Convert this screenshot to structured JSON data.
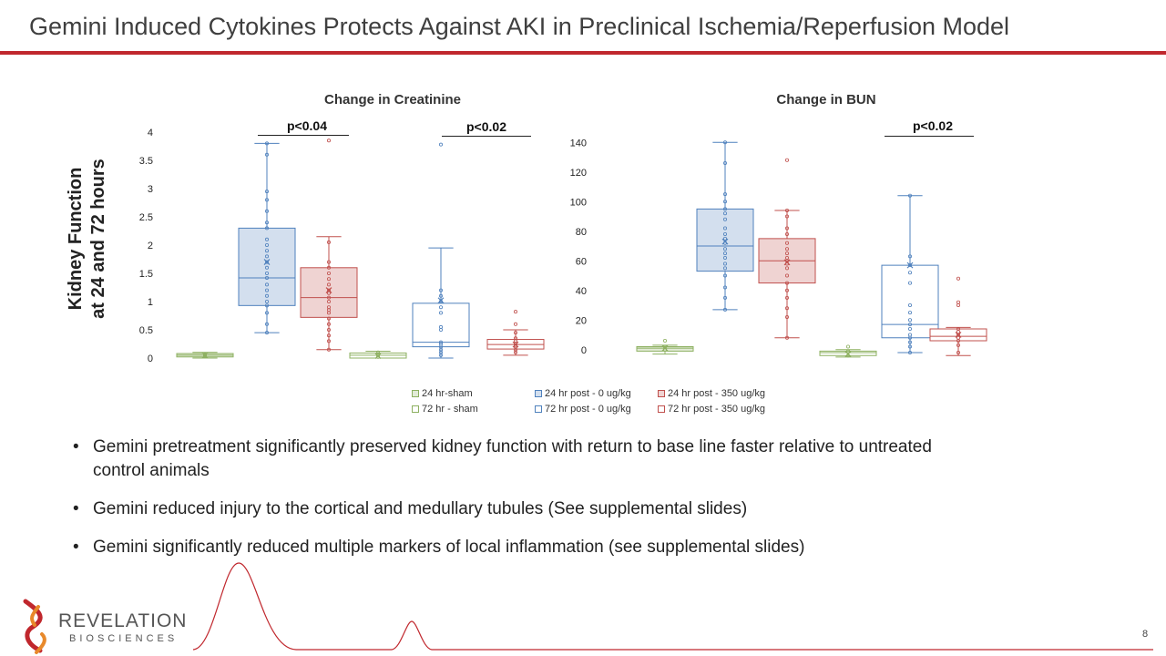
{
  "slide": {
    "title": "Gemini Induced Cytokines Protects Against AKI in Preclinical Ischemia/Reperfusion Model",
    "page_number": "8",
    "y_axis_label_line1": "Kidney Function",
    "y_axis_label_line2": "at 24 and 72 hours",
    "bullets": [
      "Gemini pretreatment significantly preserved kidney function with return to base line faster relative to untreated control animals",
      "Gemini reduced injury to the cortical and medullary tubules (See supplemental slides)",
      "Gemini significantly reduced multiple markers of local inflammation (see supplemental slides)"
    ],
    "logo": {
      "name": "REVELATION",
      "subtitle": "BIOSCIENCES"
    },
    "colors": {
      "accent": "#c0272d",
      "green": "#8db060",
      "blue": "#4f81bd",
      "red": "#c0504d"
    }
  },
  "legend": [
    {
      "label": "24 hr-sham",
      "color": "#8db060",
      "filled": true
    },
    {
      "label": "24 hr post - 0 ug/kg",
      "color": "#4f81bd",
      "filled": true
    },
    {
      "label": "24 hr post - 350 ug/kg",
      "color": "#c0504d",
      "filled": true
    },
    {
      "label": "72 hr - sham",
      "color": "#8db060",
      "filled": false
    },
    {
      "label": "72 hr post - 0 ug/kg",
      "color": "#4f81bd",
      "filled": false
    },
    {
      "label": "72 hr post - 350 ug/kg",
      "color": "#c0504d",
      "filled": false
    }
  ],
  "chart_data": [
    {
      "type": "box",
      "title": "Change in Creatinine",
      "ylim": [
        0,
        4
      ],
      "yticks": [
        0,
        0.5,
        1,
        1.5,
        2,
        2.5,
        3,
        3.5,
        4
      ],
      "ytick_labels": [
        "0",
        "0.5",
        "1",
        "1.5",
        "2",
        "2.5",
        "3",
        "3.5",
        "4"
      ],
      "significance": [
        {
          "label": "p<0.04",
          "groups": [
            "24 hr post - 0 ug/kg",
            "24 hr post - 350 ug/kg"
          ]
        },
        {
          "label": "p<0.02",
          "groups": [
            "72 hr post - 0 ug/kg",
            "72 hr post - 350 ug/kg"
          ]
        }
      ],
      "series": [
        {
          "name": "24 hr-sham",
          "timepoint": "24 hr",
          "color": "#8db060",
          "filled": true,
          "min": 0.0,
          "q1": 0.02,
          "median": 0.05,
          "q3": 0.08,
          "max": 0.1,
          "mean": 0.05,
          "points": [
            0.03,
            0.05,
            0.07
          ]
        },
        {
          "name": "24 hr post - 0 ug/kg",
          "timepoint": "24 hr",
          "color": "#4f81bd",
          "filled": true,
          "min": 0.45,
          "q1": 0.93,
          "median": 1.42,
          "q3": 2.3,
          "max": 3.8,
          "mean": 1.7,
          "points": [
            0.45,
            0.6,
            0.8,
            0.93,
            1.0,
            1.1,
            1.2,
            1.3,
            1.42,
            1.5,
            1.6,
            1.7,
            1.8,
            1.9,
            2.0,
            2.1,
            2.3,
            2.4,
            2.6,
            2.8,
            2.95,
            3.6,
            3.8
          ]
        },
        {
          "name": "24 hr post - 350 ug/kg",
          "timepoint": "24 hr",
          "color": "#c0504d",
          "filled": true,
          "min": 0.15,
          "q1": 0.72,
          "median": 1.07,
          "q3": 1.6,
          "max": 2.15,
          "mean": 1.2,
          "points": [
            0.15,
            0.3,
            0.4,
            0.5,
            0.6,
            0.7,
            0.8,
            0.85,
            0.9,
            1.0,
            1.07,
            1.15,
            1.2,
            1.3,
            1.4,
            1.5,
            1.6,
            1.7,
            2.05,
            3.85
          ]
        },
        {
          "name": "72 hr - sham",
          "timepoint": "72 hr",
          "color": "#8db060",
          "filled": false,
          "min": 0.0,
          "q1": 0.0,
          "median": 0.05,
          "q3": 0.09,
          "max": 0.12,
          "mean": 0.04,
          "points": [
            0.02,
            0.05,
            0.1
          ]
        },
        {
          "name": "72 hr post - 0 ug/kg",
          "timepoint": "72 hr",
          "color": "#4f81bd",
          "filled": false,
          "min": 0.0,
          "q1": 0.2,
          "median": 0.28,
          "q3": 0.97,
          "max": 1.95,
          "mean": 1.02,
          "points": [
            0.05,
            0.1,
            0.15,
            0.2,
            0.25,
            0.28,
            0.5,
            0.55,
            0.8,
            0.9,
            1.0,
            1.1,
            1.2,
            3.78
          ]
        },
        {
          "name": "72 hr post - 350 ug/kg",
          "timepoint": "72 hr",
          "color": "#c0504d",
          "filled": false,
          "min": 0.05,
          "q1": 0.16,
          "median": 0.24,
          "q3": 0.33,
          "max": 0.5,
          "mean": 0.24,
          "points": [
            0.1,
            0.15,
            0.2,
            0.22,
            0.26,
            0.3,
            0.35,
            0.45,
            0.6,
            0.82
          ]
        }
      ]
    },
    {
      "type": "box",
      "title": "Change in BUN",
      "ylim": [
        -10,
        150
      ],
      "yticks": [
        0,
        20,
        40,
        60,
        80,
        100,
        120,
        140
      ],
      "ytick_labels": [
        "0",
        "20",
        "40",
        "60",
        "80",
        "100",
        "120",
        "140"
      ],
      "significance": [
        {
          "label": "p<0.02",
          "groups": [
            "72 hr post - 0 ug/kg",
            "72 hr post - 350 ug/kg"
          ]
        }
      ],
      "series": [
        {
          "name": "24 hr-sham",
          "timepoint": "24 hr",
          "color": "#8db060",
          "filled": true,
          "min": -3,
          "q1": -1,
          "median": 1,
          "q3": 2,
          "max": 3,
          "mean": 1,
          "points": [
            0,
            2,
            6
          ]
        },
        {
          "name": "24 hr post - 0 ug/kg",
          "timepoint": "24 hr",
          "color": "#4f81bd",
          "filled": true,
          "min": 27,
          "q1": 53,
          "median": 70,
          "q3": 95,
          "max": 140,
          "mean": 73,
          "points": [
            27,
            35,
            42,
            50,
            55,
            58,
            62,
            65,
            68,
            72,
            75,
            78,
            82,
            88,
            92,
            95,
            100,
            105,
            126,
            140
          ]
        },
        {
          "name": "24 hr post - 350 ug/kg",
          "timepoint": "24 hr",
          "color": "#c0504d",
          "filled": true,
          "min": 8,
          "q1": 45,
          "median": 60,
          "q3": 75,
          "max": 94,
          "mean": 59,
          "points": [
            8,
            22,
            28,
            35,
            40,
            45,
            50,
            55,
            58,
            60,
            62,
            65,
            68,
            72,
            78,
            82,
            90,
            94,
            128
          ]
        },
        {
          "name": "72 hr - sham",
          "timepoint": "72 hr",
          "color": "#8db060",
          "filled": false,
          "min": -5,
          "q1": -4,
          "median": -2,
          "q3": -1,
          "max": 0,
          "mean": -3,
          "points": [
            -4,
            -1,
            2
          ]
        },
        {
          "name": "72 hr post - 0 ug/kg",
          "timepoint": "72 hr",
          "color": "#4f81bd",
          "filled": false,
          "min": -2,
          "q1": 8,
          "median": 17,
          "q3": 57,
          "max": 104,
          "mean": 57,
          "points": [
            -2,
            2,
            5,
            8,
            10,
            14,
            17,
            20,
            25,
            30,
            45,
            52,
            57,
            63,
            104
          ]
        },
        {
          "name": "72 hr post - 350 ug/kg",
          "timepoint": "72 hr",
          "color": "#c0504d",
          "filled": false,
          "min": -4,
          "q1": 6,
          "median": 9,
          "q3": 14,
          "max": 15,
          "mean": 10,
          "points": [
            -2,
            3,
            6,
            8,
            10,
            12,
            14,
            30,
            32,
            48
          ]
        }
      ]
    }
  ]
}
